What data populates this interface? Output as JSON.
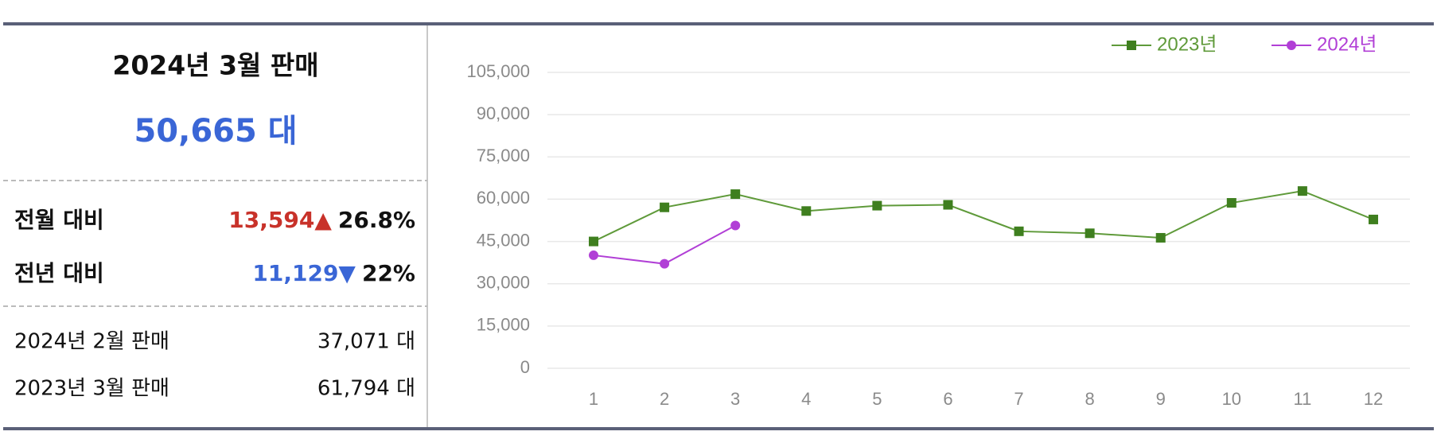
{
  "panel": {
    "title": "2024년 3월 판매",
    "total": "50,665 대",
    "compare": [
      {
        "label": "전월 대비",
        "diff": "13,594▲",
        "pct": "26.8%",
        "color": "#c8322a"
      },
      {
        "label": "전년 대비",
        "diff": "11,129▼",
        "pct": "22%",
        "color": "#3a66d6"
      }
    ],
    "history": [
      {
        "label": "2024년 2월 판매",
        "value": "37,071 대"
      },
      {
        "label": "2023년 3월 판매",
        "value": "61,794 대"
      }
    ]
  },
  "chart_data": {
    "type": "line",
    "categories": [
      "1",
      "2",
      "3",
      "4",
      "5",
      "6",
      "7",
      "8",
      "9",
      "10",
      "11",
      "12"
    ],
    "series": [
      {
        "name": "2023년",
        "color": "#5f9a3a",
        "values": [
          45000,
          57100,
          61794,
          55800,
          57700,
          58000,
          48600,
          47900,
          46300,
          58700,
          62900,
          52800
        ]
      },
      {
        "name": "2024년",
        "color": "#b13fd6",
        "values": [
          40100,
          37071,
          50665,
          null,
          null,
          null,
          null,
          null,
          null,
          null,
          null,
          null
        ]
      }
    ],
    "ylim": [
      0,
      105000
    ],
    "yticks": [
      {
        "value": 0,
        "label": "0"
      },
      {
        "value": 15000,
        "label": "15,000"
      },
      {
        "value": 30000,
        "label": "30,000"
      },
      {
        "value": 45000,
        "label": "45,000"
      },
      {
        "value": 60000,
        "label": "60,000"
      },
      {
        "value": 75000,
        "label": "75,000"
      },
      {
        "value": 90000,
        "label": "90,000"
      },
      {
        "value": 105000,
        "label": "105,000"
      }
    ],
    "grid": true,
    "legend": "top-right"
  }
}
